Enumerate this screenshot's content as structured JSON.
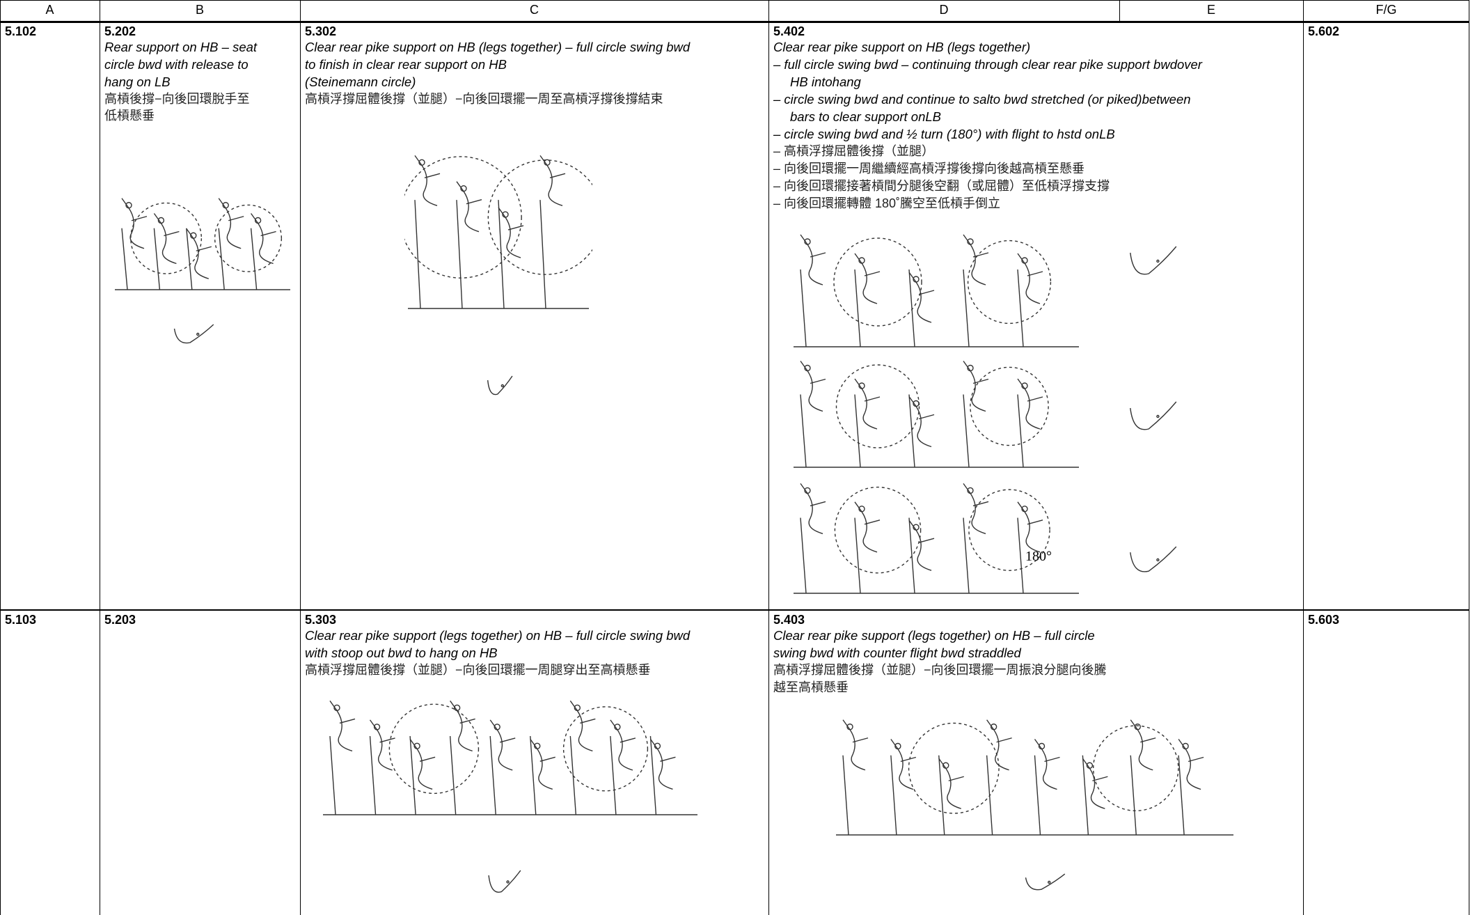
{
  "header": {
    "columns": [
      "A",
      "B",
      "C",
      "D",
      "E",
      "F/G"
    ]
  },
  "table": {
    "rows": [
      [
        {
          "code": "5.102"
        },
        {
          "code": "5.202",
          "english": [
            "Rear support on HB – seat",
            "circle bwd with release to",
            "hang on LB"
          ],
          "chinese": [
            "高槓後撐−向後回環脫手至",
            "低槓懸垂"
          ]
        },
        {
          "code": "5.302",
          "english": [
            "Clear rear pike support on HB (legs together) – full circle swing bwd",
            "to finish in clear rear support on HB",
            "(Steinemann circle)"
          ],
          "chinese": [
            "高槓浮撐屈體後撐（並腿）−向後回環擺一周至高槓浮撐後撐結束"
          ]
        },
        {
          "code": "5.402",
          "english": [
            "Clear rear pike support on HB (legs together)",
            "– full circle swing bwd – continuing through clear rear pike support bwdover",
            "HB intohang",
            "– circle swing bwd and continue to salto bwd stretched (or piked)between",
            "bars to clear support onLB",
            "– circle swing bwd and ½ turn (180°) with flight to hstd onLB"
          ],
          "chinese": [
            "– 高槓浮撐屈體後撐（並腿）",
            "– 向後回環擺一周繼續經高槓浮撐後撐向後越高槓至懸垂",
            "– 向後回環擺接著槓間分腿後空翻（或屈體）至低槓浮撐支撐",
            "– 向後回環擺轉體 180˚騰空至低槓手倒立"
          ],
          "figure_label": "180°"
        },
        {
          "code": "5.602"
        }
      ],
      [
        {
          "code": "5.103"
        },
        {
          "code": "5.203"
        },
        {
          "code": "5.303",
          "english": [
            "Clear rear pike support (legs together) on HB – full circle swing bwd",
            "with stoop out bwd to hang on HB"
          ],
          "chinese": [
            "高槓浮撐屈體後撐（並腿）−向後回環擺一周腿穿出至高槓懸垂"
          ]
        },
        {
          "code": "5.403",
          "english": [
            "Clear rear pike support (legs together) on HB – full circle",
            "swing bwd with counter flight bwd straddled"
          ],
          "chinese": [
            "高槓浮撐屈體後撐（並腿）−向後回環擺一周振浪分腿向後騰",
            "越至高槓懸垂"
          ]
        },
        {
          "code": "5.603"
        }
      ]
    ]
  }
}
